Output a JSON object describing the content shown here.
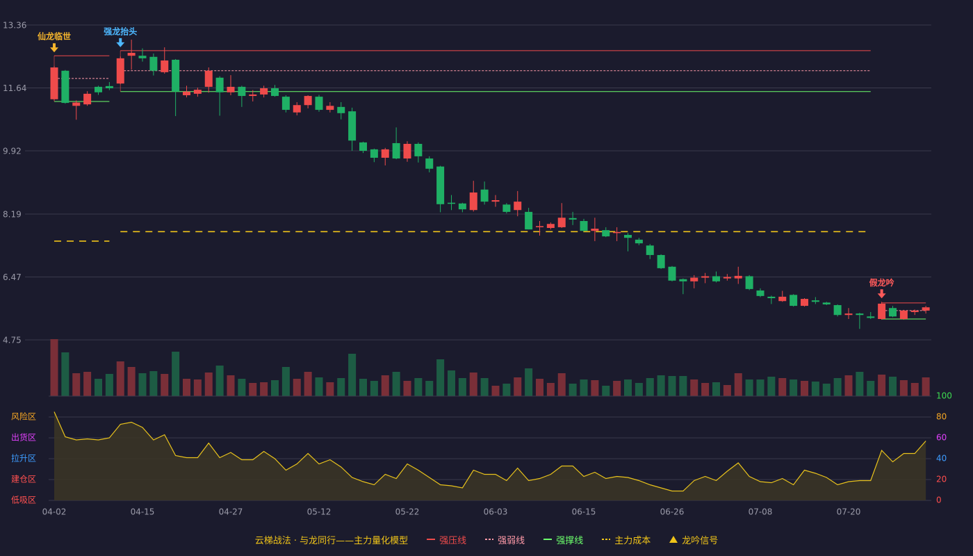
{
  "chart_data": {
    "type": "candlestick",
    "categories": [
      "04-02",
      null,
      null,
      null,
      null,
      null,
      null,
      null,
      "04-15",
      null,
      null,
      null,
      null,
      null,
      null,
      null,
      "04-27",
      null,
      null,
      null,
      null,
      null,
      null,
      null,
      "05-12",
      null,
      null,
      null,
      null,
      null,
      null,
      null,
      "05-22",
      null,
      null,
      null,
      null,
      null,
      null,
      null,
      "06-03",
      null,
      null,
      null,
      null,
      null,
      null,
      null,
      "06-15",
      null,
      null,
      null,
      null,
      null,
      null,
      null,
      "06-26",
      null,
      null,
      null,
      null,
      null,
      null,
      null,
      "07-08",
      null,
      null,
      null,
      null,
      null,
      null,
      null,
      "07-20",
      null,
      null,
      null,
      null,
      null,
      null,
      null
    ],
    "ylim": [
      4.75,
      13.36
    ],
    "yticks": [
      4.75,
      6.47,
      8.19,
      9.92,
      11.64,
      13.36
    ],
    "grid": true,
    "up_color": "#ef4b4b",
    "down_color": "#1fb065",
    "ohlc": {
      "open": [
        11.33,
        12.11,
        11.15,
        11.19,
        11.67,
        11.69,
        11.76,
        12.52,
        12.52,
        12.49,
        12.07,
        12.41,
        11.44,
        11.48,
        11.67,
        11.92,
        11.52,
        11.67,
        11.42,
        11.46,
        11.63,
        11.4,
        10.97,
        11.17,
        11.4,
        11.04,
        11.12,
        11.0,
        10.15,
        9.96,
        9.73,
        10.13,
        9.71,
        10.11,
        9.71,
        9.49,
        8.5,
        8.48,
        8.3,
        8.86,
        8.53,
        8.45,
        8.3,
        8.25,
        7.83,
        7.81,
        7.83,
        8.08,
        8.0,
        7.73,
        7.75,
        7.67,
        7.62,
        7.49,
        7.33,
        7.07,
        6.75,
        6.41,
        6.35,
        6.45,
        6.49,
        6.43,
        6.43,
        6.49,
        6.1,
        5.93,
        5.81,
        5.98,
        5.68,
        5.83,
        5.77,
        5.7,
        5.43,
        5.47,
        5.39,
        5.32,
        5.62,
        5.32,
        5.51,
        5.55
      ],
      "high": [
        12.24,
        12.13,
        11.3,
        11.55,
        11.7,
        11.8,
        12.5,
        12.96,
        12.72,
        12.58,
        12.75,
        12.43,
        11.7,
        11.65,
        12.2,
        11.96,
        11.99,
        11.7,
        11.58,
        11.7,
        11.72,
        11.44,
        11.25,
        11.44,
        11.45,
        11.25,
        11.25,
        11.1,
        10.17,
        9.98,
        10.0,
        10.56,
        10.18,
        10.15,
        9.77,
        9.51,
        8.71,
        8.5,
        9.1,
        9.08,
        8.71,
        8.49,
        8.82,
        8.36,
        8.0,
        7.96,
        8.49,
        8.25,
        8.06,
        8.09,
        7.83,
        7.83,
        7.67,
        7.54,
        7.37,
        7.09,
        6.77,
        6.43,
        6.52,
        6.58,
        6.62,
        6.55,
        6.75,
        6.52,
        6.16,
        5.96,
        6.09,
        6.0,
        5.89,
        5.92,
        5.79,
        5.72,
        5.62,
        5.49,
        5.51,
        5.79,
        5.68,
        5.57,
        5.58,
        5.68
      ],
      "low": [
        11.29,
        11.21,
        10.77,
        11.15,
        11.45,
        11.58,
        11.74,
        12.14,
        12.36,
        11.98,
        12.03,
        10.87,
        11.38,
        11.4,
        11.51,
        10.88,
        11.44,
        11.12,
        11.27,
        11.38,
        11.4,
        10.97,
        10.89,
        11.08,
        10.99,
        10.97,
        10.78,
        9.92,
        9.86,
        9.61,
        9.52,
        9.69,
        9.62,
        9.6,
        9.33,
        8.24,
        8.3,
        8.24,
        8.26,
        8.45,
        8.39,
        8.21,
        8.13,
        7.77,
        7.6,
        7.77,
        7.81,
        7.89,
        7.71,
        7.45,
        7.56,
        7.45,
        7.17,
        7.34,
        6.96,
        6.69,
        6.35,
        6.0,
        6.16,
        6.3,
        6.32,
        6.37,
        6.28,
        6.11,
        5.92,
        5.73,
        5.79,
        5.66,
        5.66,
        5.73,
        5.7,
        5.39,
        5.32,
        5.05,
        5.32,
        5.3,
        5.37,
        5.3,
        5.43,
        5.47
      ],
      "close": [
        12.2,
        11.23,
        11.24,
        11.48,
        11.52,
        11.63,
        12.45,
        12.6,
        12.45,
        12.11,
        12.39,
        11.54,
        11.54,
        11.59,
        12.11,
        11.52,
        11.67,
        11.42,
        11.46,
        11.63,
        11.42,
        11.04,
        11.17,
        11.42,
        11.04,
        11.15,
        10.95,
        10.2,
        9.92,
        9.73,
        9.96,
        9.71,
        10.11,
        9.77,
        9.43,
        8.46,
        8.47,
        8.32,
        8.78,
        8.53,
        8.57,
        8.25,
        8.53,
        7.77,
        7.86,
        7.92,
        8.09,
        8.04,
        7.73,
        7.79,
        7.58,
        7.7,
        7.54,
        7.39,
        7.07,
        6.71,
        6.37,
        6.35,
        6.45,
        6.49,
        6.35,
        6.47,
        6.5,
        6.14,
        5.95,
        5.89,
        5.93,
        5.68,
        5.87,
        5.79,
        5.72,
        5.43,
        5.47,
        5.43,
        5.35,
        5.74,
        5.39,
        5.55,
        5.55,
        5.64
      ]
    },
    "volume": {
      "up_color": "#7a2f38",
      "down_color": "#1d5c44",
      "values": [
        82,
        63,
        33,
        35,
        25,
        32,
        50,
        42,
        33,
        36,
        32,
        64,
        25,
        24,
        34,
        44,
        30,
        25,
        19,
        20,
        23,
        42,
        25,
        35,
        27,
        20,
        26,
        61,
        25,
        22,
        30,
        35,
        22,
        26,
        22,
        53,
        37,
        26,
        34,
        26,
        15,
        18,
        27,
        40,
        25,
        19,
        33,
        18,
        24,
        23,
        15,
        22,
        24,
        19,
        26,
        30,
        29,
        29,
        24,
        19,
        20,
        16,
        33,
        24,
        24,
        28,
        26,
        24,
        22,
        21,
        18,
        26,
        30,
        35,
        22,
        31,
        28,
        23,
        19,
        27
      ]
    },
    "levels": [
      {
        "start": 0,
        "end": 5,
        "resistance": 12.52,
        "weak": 11.9,
        "support": 11.27,
        "cost": 7.45
      },
      {
        "start": 6,
        "end": 74,
        "resistance": 12.66,
        "weak": 12.11,
        "support": 11.54,
        "cost": 7.71
      },
      {
        "start": 75,
        "end": 79,
        "resistance": 5.76,
        "weak": 5.55,
        "support": 5.32
      }
    ],
    "level_colors": {
      "resistance": "#ef4b4b",
      "weak": "#ff9aa8",
      "support": "#6cff6c",
      "cost": "#f0c419"
    },
    "signals": [
      {
        "label": "仙龙临世",
        "index": 0,
        "color": "#f5b52c"
      },
      {
        "label": "强龙抬头",
        "index": 6,
        "color": "#4db8ff"
      },
      {
        "label": "假龙吟",
        "index": 75,
        "color": "#ff5a5a"
      }
    ],
    "indicator": {
      "color": "#e8c21c",
      "ylim": [
        0,
        100
      ],
      "yticks": [
        0,
        20,
        40,
        60,
        80,
        100
      ],
      "ytick_colors": [
        "#ff4d4d",
        "#ff4d4d",
        "#3d9cff",
        "#e040fb",
        "#f5a623",
        "#3ddc50"
      ],
      "zones": [
        {
          "label": "风险区",
          "value": 80,
          "color": "#f5a623"
        },
        {
          "label": "出货区",
          "value": 60,
          "color": "#e040fb"
        },
        {
          "label": "拉升区",
          "value": 40,
          "color": "#3d9cff"
        },
        {
          "label": "建仓区",
          "value": 20,
          "color": "#ff5050"
        },
        {
          "label": "低吸区",
          "value": 0,
          "color": "#ff5050"
        }
      ],
      "values": [
        85,
        61,
        58,
        59,
        58,
        60,
        73,
        75,
        70,
        58,
        63,
        43,
        41,
        41,
        55,
        41,
        46,
        39,
        39,
        47,
        40,
        29,
        35,
        45,
        35,
        39,
        32,
        22,
        18,
        15,
        25,
        21,
        35,
        29,
        22,
        15,
        14,
        12,
        29,
        25,
        25,
        19,
        31,
        19,
        21,
        25,
        33,
        33,
        23,
        27,
        21,
        23,
        22,
        19,
        15,
        12,
        9,
        9,
        19,
        23,
        19,
        28,
        36,
        23,
        18,
        17,
        21,
        15,
        29,
        26,
        22,
        15,
        18,
        19,
        19,
        48,
        37,
        45,
        45,
        57
      ]
    },
    "legend": {
      "title": "云梯战法 · 与龙同行——主力量化模型",
      "title_color": "#f0c419",
      "items": [
        {
          "name": "强压线",
          "color": "#ef4b4b",
          "style": "solid"
        },
        {
          "name": "强弱线",
          "color": "#ff9aa8",
          "style": "dashed"
        },
        {
          "name": "强撑线",
          "color": "#6cff6c",
          "style": "solid"
        },
        {
          "name": "主力成本",
          "color": "#f0c419",
          "style": "dashed"
        },
        {
          "name": "龙吟信号",
          "color": "#f0c419",
          "style": "triangle"
        }
      ]
    }
  }
}
